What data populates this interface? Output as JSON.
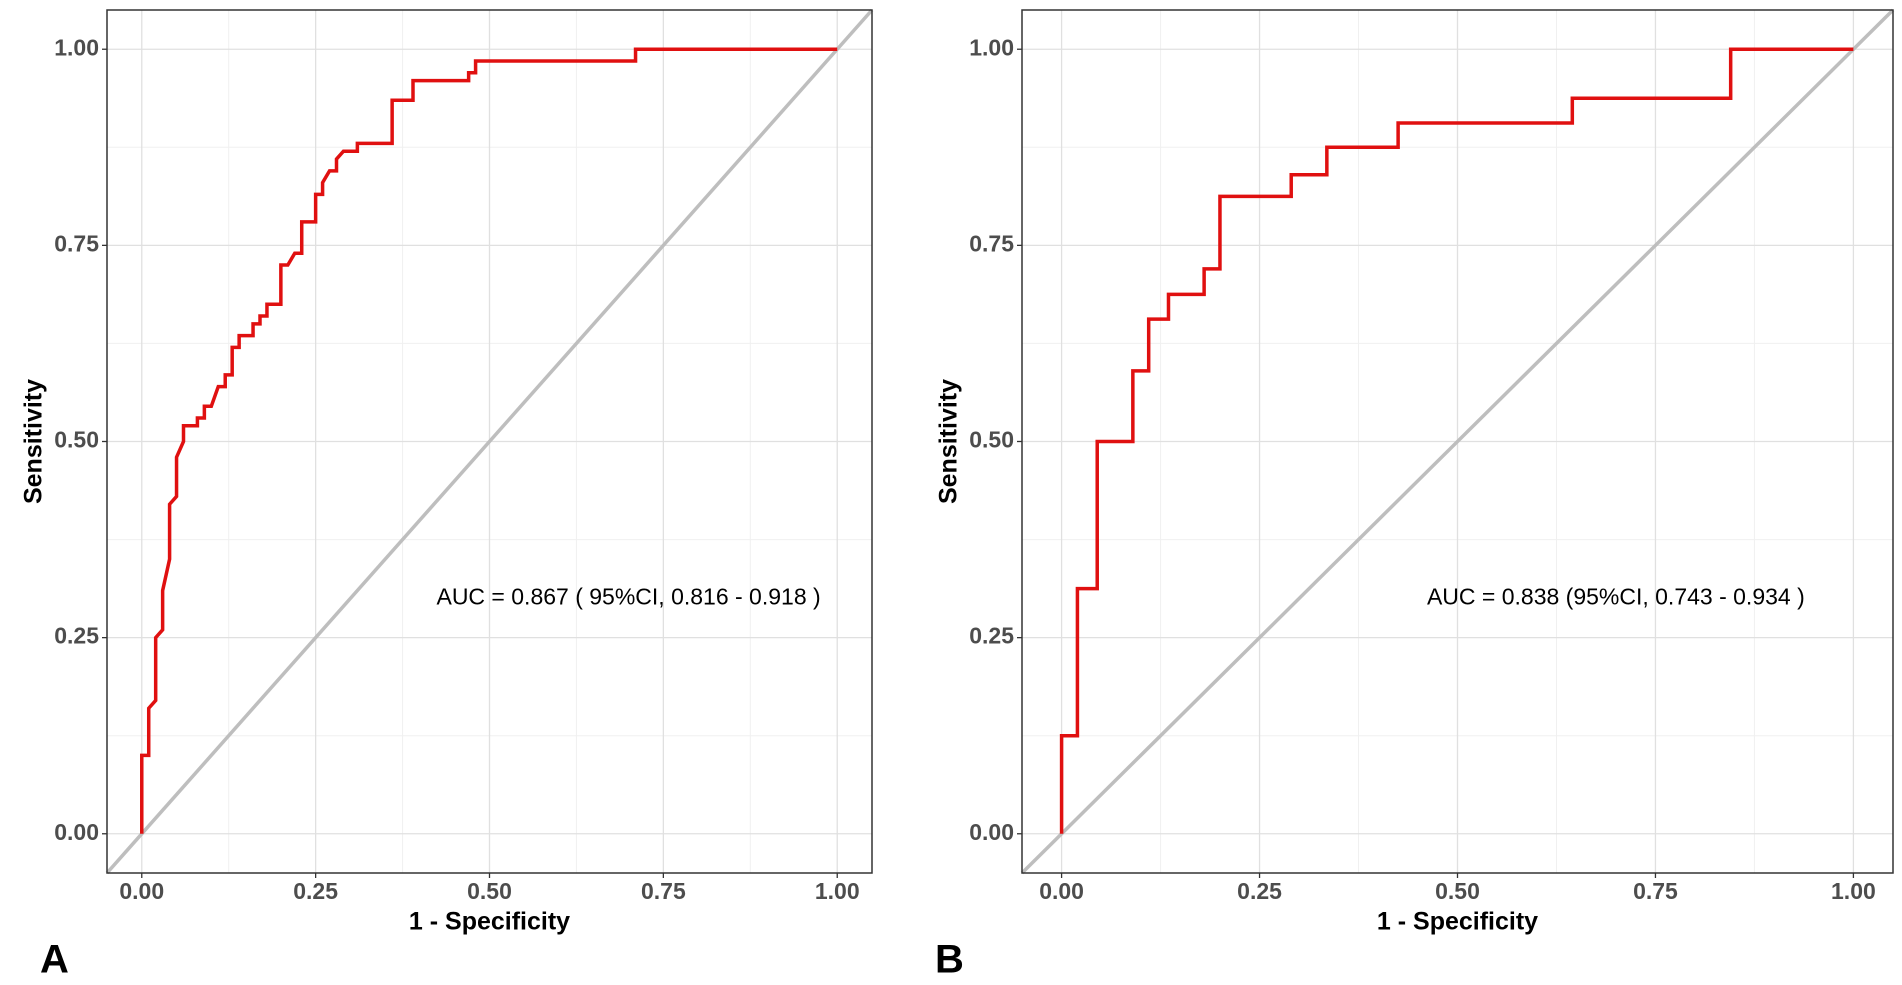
{
  "chart_data": [
    {
      "type": "line",
      "panel_label": "A",
      "xlabel": "1 - Specificity",
      "ylabel": "Sensitivity",
      "annotation": "AUC = 0.867 ( 95%CI, 0.816 - 0.918 )",
      "color": "#e01010",
      "reference_color": "#bebebe",
      "grid": true,
      "xlim": [
        -0.05,
        1.05
      ],
      "ylim": [
        -0.05,
        1.05
      ],
      "xticks": [
        {
          "value": 0,
          "label": "0.00"
        },
        {
          "value": 0.25,
          "label": "0.25"
        },
        {
          "value": 0.5,
          "label": "0.50"
        },
        {
          "value": 0.75,
          "label": "0.75"
        },
        {
          "value": 1,
          "label": "1.00"
        }
      ],
      "yticks": [
        {
          "value": 0,
          "label": "0.00"
        },
        {
          "value": 0.25,
          "label": "0.25"
        },
        {
          "value": 0.5,
          "label": "0.50"
        },
        {
          "value": 0.75,
          "label": "0.75"
        },
        {
          "value": 1,
          "label": "1.00"
        }
      ],
      "x": [
        0,
        0,
        0.01,
        0.01,
        0.02,
        0.02,
        0.03,
        0.03,
        0.04,
        0.04,
        0.05,
        0.05,
        0.06,
        0.06,
        0.08,
        0.08,
        0.09,
        0.09,
        0.1,
        0.11,
        0.12,
        0.12,
        0.13,
        0.13,
        0.14,
        0.14,
        0.16,
        0.16,
        0.17,
        0.17,
        0.18,
        0.18,
        0.2,
        0.2,
        0.21,
        0.22,
        0.23,
        0.23,
        0.25,
        0.25,
        0.26,
        0.26,
        0.27,
        0.28,
        0.28,
        0.29,
        0.31,
        0.31,
        0.36,
        0.36,
        0.39,
        0.39,
        0.47,
        0.47,
        0.48,
        0.48,
        0.71,
        0.71,
        1.0
      ],
      "values": [
        0,
        0.1,
        0.1,
        0.16,
        0.17,
        0.25,
        0.26,
        0.31,
        0.35,
        0.42,
        0.43,
        0.48,
        0.5,
        0.52,
        0.52,
        0.53,
        0.53,
        0.545,
        0.545,
        0.57,
        0.57,
        0.585,
        0.585,
        0.62,
        0.62,
        0.635,
        0.635,
        0.65,
        0.65,
        0.66,
        0.66,
        0.675,
        0.675,
        0.725,
        0.725,
        0.74,
        0.74,
        0.78,
        0.78,
        0.815,
        0.815,
        0.83,
        0.845,
        0.845,
        0.86,
        0.87,
        0.87,
        0.88,
        0.88,
        0.935,
        0.935,
        0.96,
        0.96,
        0.97,
        0.97,
        0.985,
        0.985,
        1.0,
        1.0
      ]
    },
    {
      "type": "line",
      "panel_label": "B",
      "xlabel": "1 - Specificity",
      "ylabel": "Sensitivity",
      "annotation": "AUC = 0.838 (95%CI, 0.743 - 0.934 )",
      "color": "#e01010",
      "reference_color": "#bebebe",
      "grid": true,
      "xlim": [
        -0.05,
        1.05
      ],
      "ylim": [
        -0.05,
        1.05
      ],
      "xticks": [
        {
          "value": 0,
          "label": "0.00"
        },
        {
          "value": 0.25,
          "label": "0.25"
        },
        {
          "value": 0.5,
          "label": "0.50"
        },
        {
          "value": 0.75,
          "label": "0.75"
        },
        {
          "value": 1,
          "label": "1.00"
        }
      ],
      "yticks": [
        {
          "value": 0,
          "label": "0.00"
        },
        {
          "value": 0.25,
          "label": "0.25"
        },
        {
          "value": 0.5,
          "label": "0.50"
        },
        {
          "value": 0.75,
          "label": "0.75"
        },
        {
          "value": 1,
          "label": "1.00"
        }
      ],
      "x": [
        0,
        0,
        0.02,
        0.02,
        0.045,
        0.045,
        0.09,
        0.09,
        0.11,
        0.11,
        0.135,
        0.135,
        0.18,
        0.18,
        0.2,
        0.2,
        0.29,
        0.29,
        0.335,
        0.335,
        0.425,
        0.425,
        0.645,
        0.645,
        0.845,
        0.845,
        1
      ],
      "values": [
        0,
        0.125,
        0.125,
        0.3125,
        0.3125,
        0.5,
        0.5,
        0.59,
        0.59,
        0.656,
        0.656,
        0.6875,
        0.6875,
        0.72,
        0.72,
        0.8125,
        0.8125,
        0.84,
        0.84,
        0.875,
        0.875,
        0.906,
        0.906,
        0.9375,
        0.9375,
        1,
        1
      ]
    }
  ]
}
